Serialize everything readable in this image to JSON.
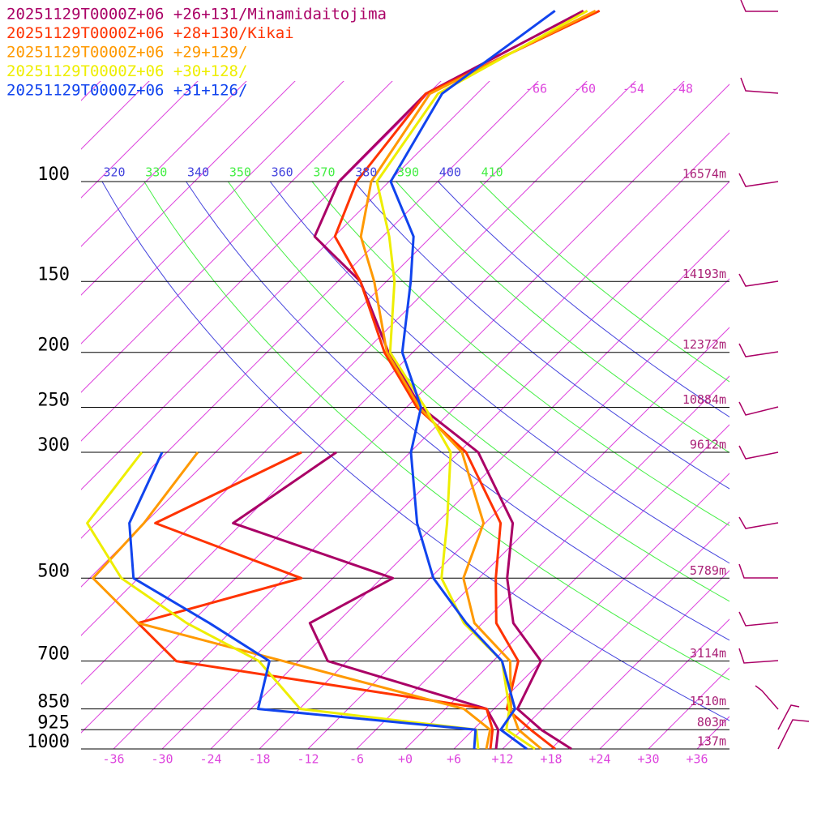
{
  "chart_data": {
    "type": "skewt",
    "yticks": [
      100,
      150,
      200,
      250,
      300,
      500,
      700,
      850,
      925,
      1000
    ],
    "height_labels": [
      "16574m",
      "14193m",
      "12372m",
      "10884m",
      "9612m",
      "5789m",
      "3114m",
      "1510m",
      "803m",
      "137m"
    ],
    "xticks": [
      -36,
      -30,
      -24,
      -18,
      -12,
      -6,
      {
        "value": 0,
        "label": "+0"
      },
      {
        "value": 6,
        "label": "+6"
      },
      {
        "value": 12,
        "label": "+12"
      },
      {
        "value": 18,
        "label": "+18"
      },
      {
        "value": 24,
        "label": "+24"
      },
      {
        "value": 30,
        "label": "+30"
      },
      {
        "value": 36,
        "label": "+36"
      }
    ],
    "isotherm_labels": [
      -66,
      -60,
      -54,
      -48
    ],
    "isotherm_color": "#dd44dd",
    "theta_lines": [
      320,
      330,
      340,
      350,
      360,
      370,
      380,
      390,
      400,
      410
    ],
    "theta_colors": [
      "#4444dd",
      "#44ee44",
      "#4444dd",
      "#44ee44",
      "#4444dd",
      "#44ee44",
      "#4444dd",
      "#44ee44",
      "#4444dd",
      "#44ee44"
    ],
    "pressure_levels": [
      1000,
      925,
      850,
      700,
      600,
      500,
      400,
      300,
      250,
      200,
      150,
      125,
      100,
      70,
      50
    ],
    "dewpoint_levels": [
      1000,
      925,
      850,
      700,
      600,
      500,
      400,
      300
    ],
    "series": [
      {
        "name": "20251129T0000Z+06 +26+131/Minamidaitojima",
        "color": "#aa0066",
        "temperature": [
          20.5,
          14.4,
          8.9,
          5.9,
          -2.2,
          -8.5,
          -14.6,
          -27.6,
          -40.2,
          -51,
          -63.2,
          -74.4,
          -78.2,
          -78.3,
          -69.1
        ],
        "dewpoint": [
          11.2,
          9.1,
          5.1,
          -20.4,
          -27.3,
          -22.6,
          -49.1,
          -45.1
        ]
      },
      {
        "name": "20251129T0000Z+06 +28+130/Kikai",
        "color": "#ff3300",
        "temperature": [
          18.5,
          13.1,
          7.6,
          3.1,
          -4.3,
          -9.9,
          -16.1,
          -29.1,
          -40.7,
          -51.5,
          -63.2,
          -71.9,
          -76,
          -78.3,
          -67.1
        ],
        "dewpoint": [
          10.5,
          8.4,
          5.1,
          -39.1,
          -48.5,
          -33.9,
          -58.7,
          -49.4
        ]
      },
      {
        "name": "20251129T0000Z+06 +29+129/",
        "color": "#ff9900",
        "temperature": [
          16.8,
          11.6,
          8.1,
          2.1,
          -7,
          -13.9,
          -18.2,
          -29.6,
          -40.4,
          -51.2,
          -61.5,
          -68.7,
          -74.2,
          -77.8,
          -67.6
        ],
        "dewpoint": [
          10,
          8.1,
          2.3,
          -25.9,
          -48.5,
          -59.6,
          -60.1,
          -62.2
        ]
      },
      {
        "name": "20251129T0000Z+06 +30+128/",
        "color": "#eeee00",
        "temperature": [
          16,
          10.1,
          7.9,
          1.1,
          -8.3,
          -16.6,
          -22.7,
          -31,
          -39.7,
          -50.8,
          -59,
          -65.2,
          -73.5,
          -76.8,
          -68.6
        ],
        "dewpoint": [
          9,
          6.4,
          -17.9,
          -28.9,
          -42.5,
          -56.1,
          -67.1,
          -69.1
        ]
      },
      {
        "name": "20251129T0000Z+06 +31+126/",
        "color": "#1144ee",
        "temperature": [
          15,
          9.4,
          8.6,
          1.1,
          -8,
          -17.6,
          -26.4,
          -35.9,
          -40.2,
          -49.3,
          -57,
          -62.2,
          -71.8,
          -76.3,
          -72.6
        ],
        "dewpoint": [
          8.5,
          6.3,
          -23.1,
          -27.6,
          -39.7,
          -54.6,
          -61.9,
          -66.6
        ]
      }
    ]
  }
}
